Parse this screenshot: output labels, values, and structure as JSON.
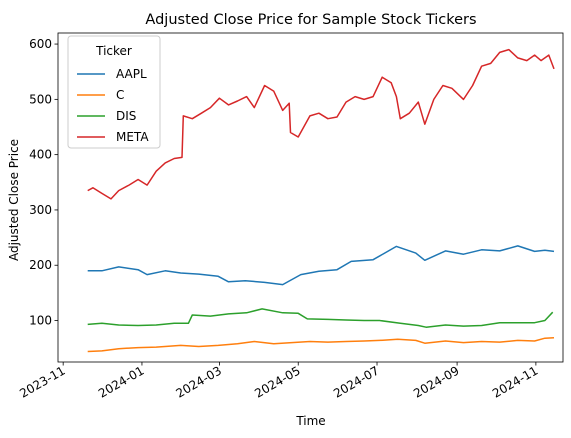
{
  "chart_data": {
    "type": "line",
    "title": "Adjusted Close Price for Sample Stock Tickers",
    "xlabel": "Time",
    "ylabel": "Adjusted Close Price",
    "xlim": [
      "2023-10-28",
      "2024-11-22"
    ],
    "ylim": [
      25,
      620
    ],
    "yticks": [
      100,
      200,
      300,
      400,
      500,
      600
    ],
    "xticks": [
      "2023-11-01",
      "2024-01-01",
      "2024-03-01",
      "2024-05-01",
      "2024-07-01",
      "2024-09-01",
      "2024-11-01"
    ],
    "xtick_labels": [
      "2023-11",
      "2024-01",
      "2024-03",
      "2024-05",
      "2024-07",
      "2024-09",
      "2024-11"
    ],
    "grid": false,
    "legend": {
      "title": "Ticker",
      "position": "top-left"
    },
    "series": [
      {
        "name": "AAPL",
        "color": "#1f77b4",
        "points": [
          [
            "2023-11-20",
            190
          ],
          [
            "2023-12-01",
            190
          ],
          [
            "2023-12-14",
            197
          ],
          [
            "2023-12-29",
            192
          ],
          [
            "2024-01-05",
            183
          ],
          [
            "2024-01-19",
            190
          ],
          [
            "2024-01-31",
            186
          ],
          [
            "2024-02-14",
            184
          ],
          [
            "2024-02-29",
            180
          ],
          [
            "2024-03-08",
            170
          ],
          [
            "2024-03-21",
            172
          ],
          [
            "2024-04-05",
            169
          ],
          [
            "2024-04-19",
            165
          ],
          [
            "2024-05-03",
            183
          ],
          [
            "2024-05-17",
            189
          ],
          [
            "2024-05-31",
            192
          ],
          [
            "2024-06-11",
            207
          ],
          [
            "2024-06-28",
            210
          ],
          [
            "2024-07-16",
            234
          ],
          [
            "2024-07-31",
            222
          ],
          [
            "2024-08-07",
            209
          ],
          [
            "2024-08-23",
            226
          ],
          [
            "2024-09-06",
            220
          ],
          [
            "2024-09-20",
            228
          ],
          [
            "2024-10-04",
            226
          ],
          [
            "2024-10-18",
            235
          ],
          [
            "2024-10-31",
            225
          ],
          [
            "2024-11-08",
            227
          ],
          [
            "2024-11-15",
            225
          ]
        ]
      },
      {
        "name": "C",
        "color": "#ff7f0e",
        "points": [
          [
            "2023-11-20",
            44
          ],
          [
            "2023-12-01",
            45
          ],
          [
            "2023-12-14",
            49
          ],
          [
            "2023-12-29",
            51
          ],
          [
            "2024-01-12",
            52
          ],
          [
            "2024-01-31",
            55
          ],
          [
            "2024-02-14",
            53
          ],
          [
            "2024-02-29",
            55
          ],
          [
            "2024-03-15",
            58
          ],
          [
            "2024-03-28",
            62
          ],
          [
            "2024-04-12",
            58
          ],
          [
            "2024-04-26",
            60
          ],
          [
            "2024-05-10",
            62
          ],
          [
            "2024-05-24",
            61
          ],
          [
            "2024-06-07",
            62
          ],
          [
            "2024-06-21",
            63
          ],
          [
            "2024-07-03",
            64
          ],
          [
            "2024-07-17",
            66
          ],
          [
            "2024-07-31",
            64
          ],
          [
            "2024-08-07",
            59
          ],
          [
            "2024-08-23",
            63
          ],
          [
            "2024-09-06",
            60
          ],
          [
            "2024-09-20",
            62
          ],
          [
            "2024-10-04",
            61
          ],
          [
            "2024-10-18",
            64
          ],
          [
            "2024-10-31",
            63
          ],
          [
            "2024-11-08",
            68
          ],
          [
            "2024-11-15",
            69
          ]
        ]
      },
      {
        "name": "DIS",
        "color": "#2ca02c",
        "points": [
          [
            "2023-11-20",
            93
          ],
          [
            "2023-12-01",
            95
          ],
          [
            "2023-12-14",
            92
          ],
          [
            "2023-12-29",
            91
          ],
          [
            "2024-01-12",
            92
          ],
          [
            "2024-01-26",
            95
          ],
          [
            "2024-02-06",
            95
          ],
          [
            "2024-02-09",
            110
          ],
          [
            "2024-02-23",
            108
          ],
          [
            "2024-03-08",
            112
          ],
          [
            "2024-03-22",
            114
          ],
          [
            "2024-04-03",
            121
          ],
          [
            "2024-04-19",
            114
          ],
          [
            "2024-05-01",
            113
          ],
          [
            "2024-05-08",
            103
          ],
          [
            "2024-05-24",
            102
          ],
          [
            "2024-06-07",
            101
          ],
          [
            "2024-06-21",
            100
          ],
          [
            "2024-07-03",
            100
          ],
          [
            "2024-07-19",
            95
          ],
          [
            "2024-08-02",
            91
          ],
          [
            "2024-08-08",
            88
          ],
          [
            "2024-08-23",
            92
          ],
          [
            "2024-09-06",
            90
          ],
          [
            "2024-09-20",
            91
          ],
          [
            "2024-10-04",
            96
          ],
          [
            "2024-10-18",
            96
          ],
          [
            "2024-10-31",
            96
          ],
          [
            "2024-11-08",
            100
          ],
          [
            "2024-11-14",
            115
          ]
        ]
      },
      {
        "name": "META",
        "color": "#d62728",
        "points": [
          [
            "2023-11-20",
            335
          ],
          [
            "2023-11-24",
            340
          ],
          [
            "2023-12-01",
            330
          ],
          [
            "2023-12-08",
            320
          ],
          [
            "2023-12-14",
            335
          ],
          [
            "2023-12-22",
            345
          ],
          [
            "2023-12-29",
            355
          ],
          [
            "2024-01-05",
            345
          ],
          [
            "2024-01-12",
            370
          ],
          [
            "2024-01-19",
            385
          ],
          [
            "2024-01-26",
            393
          ],
          [
            "2024-02-01",
            395
          ],
          [
            "2024-02-02",
            470
          ],
          [
            "2024-02-09",
            465
          ],
          [
            "2024-02-16",
            475
          ],
          [
            "2024-02-23",
            485
          ],
          [
            "2024-03-01",
            502
          ],
          [
            "2024-03-08",
            490
          ],
          [
            "2024-03-15",
            497
          ],
          [
            "2024-03-22",
            505
          ],
          [
            "2024-03-28",
            485
          ],
          [
            "2024-04-05",
            525
          ],
          [
            "2024-04-12",
            515
          ],
          [
            "2024-04-19",
            480
          ],
          [
            "2024-04-24",
            493
          ],
          [
            "2024-04-25",
            440
          ],
          [
            "2024-05-01",
            432
          ],
          [
            "2024-05-10",
            470
          ],
          [
            "2024-05-17",
            475
          ],
          [
            "2024-05-24",
            465
          ],
          [
            "2024-05-31",
            468
          ],
          [
            "2024-06-07",
            495
          ],
          [
            "2024-06-14",
            505
          ],
          [
            "2024-06-21",
            500
          ],
          [
            "2024-06-28",
            505
          ],
          [
            "2024-07-05",
            540
          ],
          [
            "2024-07-12",
            530
          ],
          [
            "2024-07-16",
            505
          ],
          [
            "2024-07-19",
            465
          ],
          [
            "2024-07-26",
            475
          ],
          [
            "2024-08-02",
            495
          ],
          [
            "2024-08-07",
            455
          ],
          [
            "2024-08-14",
            500
          ],
          [
            "2024-08-21",
            525
          ],
          [
            "2024-08-28",
            520
          ],
          [
            "2024-09-06",
            500
          ],
          [
            "2024-09-13",
            525
          ],
          [
            "2024-09-20",
            560
          ],
          [
            "2024-09-27",
            565
          ],
          [
            "2024-10-04",
            585
          ],
          [
            "2024-10-11",
            590
          ],
          [
            "2024-10-18",
            575
          ],
          [
            "2024-10-25",
            570
          ],
          [
            "2024-10-31",
            580
          ],
          [
            "2024-11-05",
            570
          ],
          [
            "2024-11-11",
            580
          ],
          [
            "2024-11-15",
            555
          ]
        ]
      }
    ]
  }
}
